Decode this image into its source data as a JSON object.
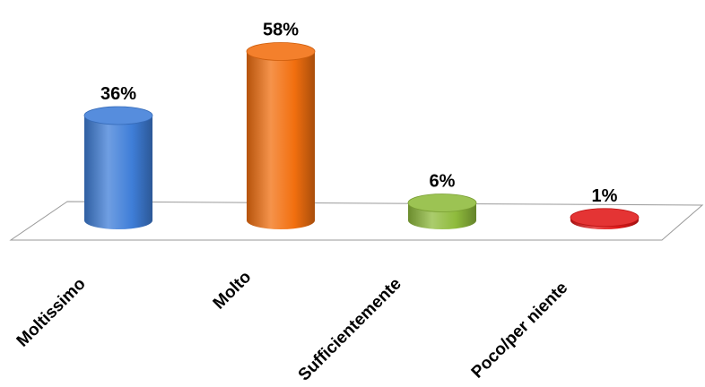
{
  "chart_data": {
    "type": "bar",
    "style": "3d-cylinder",
    "categories": [
      "Moltissimo",
      "Molto",
      "Sufficientemente",
      "Poco/per niente"
    ],
    "values": [
      36,
      58,
      6,
      1
    ],
    "value_unit": "%",
    "data_labels": [
      "36%",
      "58%",
      "6%",
      "1%"
    ],
    "colors": [
      "#3f7ed8",
      "#f26f0f",
      "#8fbb3c",
      "#e01818"
    ],
    "title": "",
    "xlabel": "",
    "ylabel": "",
    "ylim": [
      0,
      60
    ],
    "grid": false,
    "legend": "none"
  }
}
